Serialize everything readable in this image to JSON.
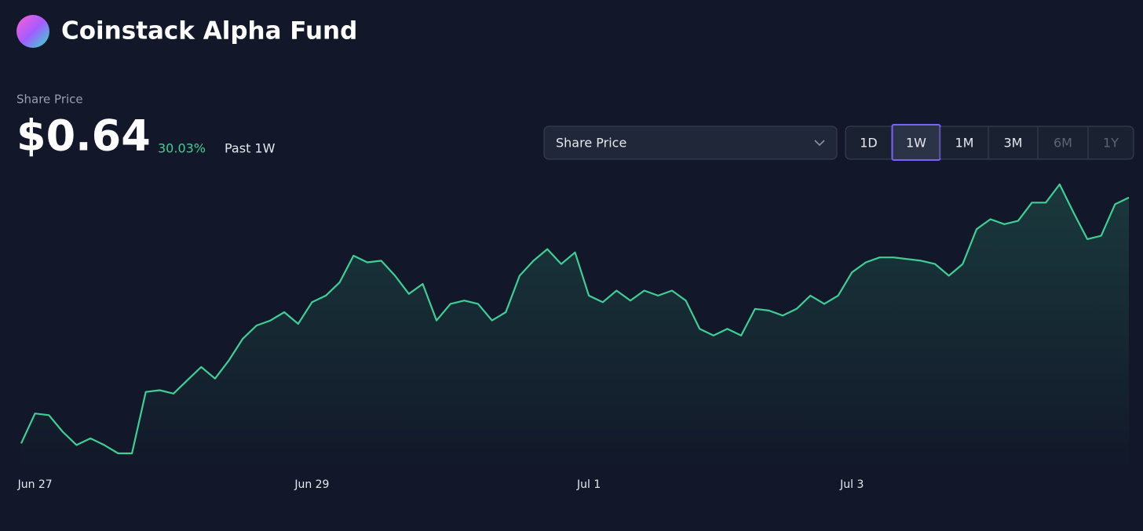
{
  "header": {
    "title": "Coinstack Alpha Fund"
  },
  "summary": {
    "label": "Share Price",
    "price": "$0.64",
    "change": "30.03%",
    "period": "Past 1W"
  },
  "controls": {
    "metric": "Share Price",
    "ranges": [
      "1D",
      "1W",
      "1M",
      "3M",
      "6M",
      "1Y"
    ],
    "active_range": "1W",
    "disabled_ranges": [
      "6M",
      "1Y"
    ]
  },
  "chart_data": {
    "type": "line",
    "color": "#3ecf95",
    "categories": [
      null,
      "Jun 27",
      null,
      null,
      null,
      null,
      null,
      null,
      null,
      null,
      null,
      null,
      null,
      null,
      null,
      null,
      null,
      null,
      null,
      null,
      null,
      "Jun 29",
      null,
      null,
      null,
      null,
      null,
      null,
      null,
      null,
      null,
      null,
      null,
      null,
      null,
      null,
      null,
      null,
      null,
      null,
      null,
      "Jul 1",
      null,
      null,
      null,
      null,
      null,
      null,
      null,
      null,
      null,
      null,
      null,
      null,
      null,
      null,
      null,
      null,
      null,
      null,
      "Jul 3",
      null,
      null,
      null,
      null,
      null,
      null,
      null,
      null,
      null,
      null,
      null,
      null,
      null,
      null,
      null,
      null,
      null,
      null,
      null,
      null
    ],
    "values": [
      0.492,
      0.51,
      0.509,
      0.499,
      0.491,
      0.495,
      0.491,
      0.486,
      0.486,
      0.523,
      0.524,
      0.522,
      0.53,
      0.538,
      0.531,
      0.542,
      0.555,
      0.563,
      0.566,
      0.571,
      0.564,
      0.577,
      0.581,
      0.589,
      0.605,
      0.601,
      0.602,
      0.593,
      0.582,
      0.588,
      0.566,
      0.576,
      0.578,
      0.576,
      0.566,
      0.571,
      0.593,
      0.602,
      0.609,
      0.6,
      0.607,
      0.581,
      0.577,
      0.584,
      0.578,
      0.584,
      0.581,
      0.584,
      0.578,
      0.561,
      0.557,
      0.561,
      0.557,
      0.573,
      0.572,
      0.569,
      0.573,
      0.581,
      0.576,
      0.581,
      0.595,
      0.601,
      0.604,
      0.604,
      0.603,
      0.602,
      0.6,
      0.593,
      0.6,
      0.621,
      0.627,
      0.624,
      0.626,
      0.637,
      0.637,
      0.648,
      0.631,
      0.615,
      0.617,
      0.636,
      0.64
    ]
  }
}
